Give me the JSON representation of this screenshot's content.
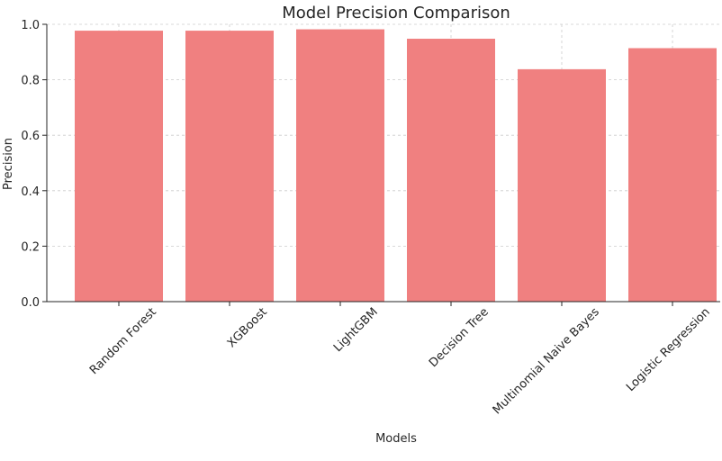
{
  "chart_data": {
    "type": "bar",
    "title": "Model Precision Comparison",
    "xlabel": "Models",
    "ylabel": "Precision",
    "categories": [
      "Random Forest",
      "XGBoost",
      "LightGBM",
      "Decision Tree",
      "Multinomial Naive Bayes",
      "Logistic Regression"
    ],
    "values": [
      0.977,
      0.977,
      0.982,
      0.948,
      0.838,
      0.914
    ],
    "ylim": [
      0,
      1.0
    ],
    "yticks": [
      "0.0",
      "0.2",
      "0.4",
      "0.6",
      "0.8",
      "1.0"
    ],
    "grid": true,
    "bar_color": "#f08080"
  }
}
